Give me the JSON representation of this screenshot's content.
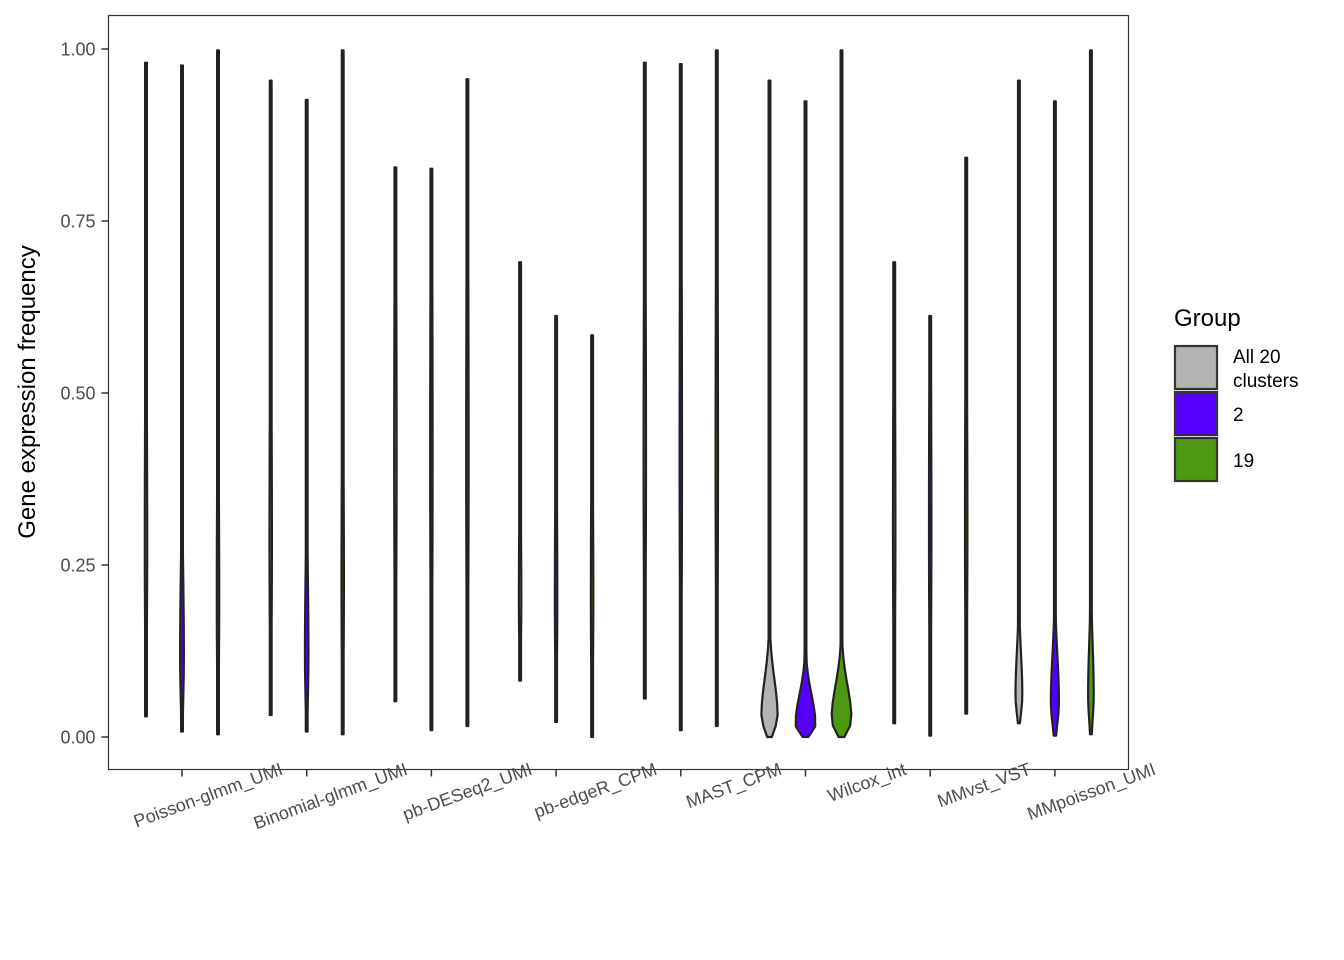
{
  "chart_data": {
    "type": "violin",
    "title": "",
    "xlabel": "",
    "ylabel": "Gene expression frequency",
    "ylim": [
      -0.04,
      1.04
    ],
    "yticks": [
      "0.00",
      "0.25",
      "0.50",
      "0.75",
      "1.00"
    ],
    "ytick_values": [
      0,
      0.25,
      0.5,
      0.75,
      1.0
    ],
    "grid": false,
    "legend": {
      "title": "Group",
      "placement": "right",
      "items": [
        {
          "label_lines": [
            "All 20",
            "clusters"
          ],
          "color": "#b3b3b3"
        },
        {
          "label_lines": [
            "2"
          ],
          "color": "#5500ff"
        },
        {
          "label_lines": [
            "19"
          ],
          "color": "#4d9a12"
        }
      ]
    },
    "categories": [
      "Poisson-glmm_UMI",
      "Binomial-glmm_UMI",
      "pb-DESeq2_UMI",
      "pb-edgeR_CPM",
      "MAST_CPM",
      "Wilcox_int",
      "MMvst_VST",
      "MMpoisson_UMI"
    ],
    "groups": [
      "All 20 clusters",
      "2",
      "19"
    ],
    "violins": [
      {
        "category": 0,
        "group": 0,
        "min": 0.03,
        "max": 0.98,
        "max_width": 0.012,
        "peak": 0.28
      },
      {
        "category": 0,
        "group": 1,
        "min": 0.008,
        "max": 0.976,
        "max_width": 0.03,
        "peak": 0.12
      },
      {
        "category": 0,
        "group": 2,
        "min": 0.004,
        "max": 0.998,
        "max_width": 0.016,
        "peak": 0.2
      },
      {
        "category": 1,
        "group": 0,
        "min": 0.032,
        "max": 0.954,
        "max_width": 0.012,
        "peak": 0.28
      },
      {
        "category": 1,
        "group": 1,
        "min": 0.008,
        "max": 0.926,
        "max_width": 0.028,
        "peak": 0.12
      },
      {
        "category": 1,
        "group": 2,
        "min": 0.004,
        "max": 0.998,
        "max_width": 0.012,
        "peak": 0.22
      },
      {
        "category": 2,
        "group": 0,
        "min": 0.052,
        "max": 0.828,
        "max_width": 0.004,
        "peak": 0.4
      },
      {
        "category": 2,
        "group": 1,
        "min": 0.01,
        "max": 0.826,
        "max_width": 0.006,
        "peak": 0.4
      },
      {
        "category": 2,
        "group": 2,
        "min": 0.016,
        "max": 0.956,
        "max_width": 0.004,
        "peak": 0.4
      },
      {
        "category": 3,
        "group": 0,
        "min": 0.082,
        "max": 0.69,
        "max_width": 0.008,
        "peak": 0.2
      },
      {
        "category": 3,
        "group": 1,
        "min": 0.022,
        "max": 0.612,
        "max_width": 0.008,
        "peak": 0.2
      },
      {
        "category": 3,
        "group": 2,
        "min": 0.0,
        "max": 0.584,
        "max_width": 0.008,
        "peak": 0.2
      },
      {
        "category": 4,
        "group": 0,
        "min": 0.056,
        "max": 0.98,
        "max_width": 0.004,
        "peak": 0.4
      },
      {
        "category": 4,
        "group": 1,
        "min": 0.01,
        "max": 0.978,
        "max_width": 0.004,
        "peak": 0.4
      },
      {
        "category": 4,
        "group": 2,
        "min": 0.016,
        "max": 0.998,
        "max_width": 0.004,
        "peak": 0.4
      },
      {
        "category": 5,
        "group": 0,
        "min": 0.0,
        "max": 0.954,
        "max_width": 0.13,
        "peak": 0.03
      },
      {
        "category": 5,
        "group": 1,
        "min": 0.0,
        "max": 0.924,
        "max_width": 0.16,
        "peak": 0.018
      },
      {
        "category": 5,
        "group": 2,
        "min": 0.0,
        "max": 0.998,
        "max_width": 0.16,
        "peak": 0.025
      },
      {
        "category": 6,
        "group": 0,
        "min": 0.02,
        "max": 0.69,
        "max_width": 0.004,
        "peak": 0.3
      },
      {
        "category": 6,
        "group": 1,
        "min": 0.002,
        "max": 0.612,
        "max_width": 0.004,
        "peak": 0.3
      },
      {
        "category": 6,
        "group": 2,
        "min": 0.034,
        "max": 0.842,
        "max_width": 0.004,
        "peak": 0.3
      },
      {
        "category": 7,
        "group": 0,
        "min": 0.02,
        "max": 0.954,
        "max_width": 0.055,
        "peak": 0.06
      },
      {
        "category": 7,
        "group": 1,
        "min": 0.002,
        "max": 0.924,
        "max_width": 0.065,
        "peak": 0.05
      },
      {
        "category": 7,
        "group": 2,
        "min": 0.004,
        "max": 0.998,
        "max_width": 0.045,
        "peak": 0.06
      }
    ]
  }
}
